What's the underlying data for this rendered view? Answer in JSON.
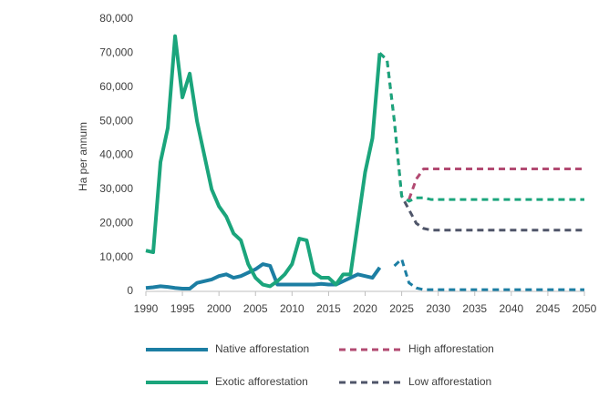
{
  "chart_data": {
    "type": "line",
    "y_label": "Ha per annum",
    "x": [
      1990,
      1991,
      1992,
      1993,
      1994,
      1995,
      1996,
      1997,
      1998,
      1999,
      2000,
      2001,
      2002,
      2003,
      2004,
      2005,
      2006,
      2007,
      2008,
      2009,
      2010,
      2011,
      2012,
      2013,
      2014,
      2015,
      2016,
      2017,
      2018,
      2019,
      2020,
      2021,
      2022,
      2023,
      2024,
      2025,
      2026,
      2027,
      2028,
      2029,
      2030,
      2031,
      2032,
      2033,
      2034,
      2035,
      2036,
      2037,
      2038,
      2039,
      2040,
      2041,
      2042,
      2043,
      2044,
      2045,
      2046,
      2047,
      2048,
      2049,
      2050
    ],
    "series": [
      {
        "name": "Native afforestation",
        "color": "#1c7ea3",
        "line_style": "solid",
        "values": [
          1000,
          1200,
          1500,
          1300,
          1000,
          800,
          800,
          2500,
          3000,
          3500,
          4500,
          5000,
          4000,
          4500,
          5500,
          6500,
          8000,
          7500,
          2000,
          2000,
          2000,
          2000,
          2000,
          2000,
          2200,
          2000,
          2000,
          3000,
          4000,
          5000,
          4500,
          4000,
          7000,
          null,
          null,
          null,
          null,
          null,
          null,
          null,
          null,
          null,
          null,
          null,
          null,
          null,
          null,
          null,
          null,
          null,
          null,
          null,
          null,
          null,
          null,
          null,
          null,
          null,
          null,
          null,
          null
        ]
      },
      {
        "name": "High afforestation",
        "color": "#b24a72",
        "line_style": "dashed",
        "values": [
          null,
          null,
          null,
          null,
          null,
          null,
          null,
          null,
          null,
          null,
          null,
          null,
          null,
          null,
          null,
          null,
          null,
          null,
          null,
          null,
          null,
          null,
          null,
          null,
          null,
          null,
          null,
          null,
          null,
          null,
          null,
          null,
          null,
          null,
          null,
          null,
          27000,
          33000,
          36000,
          36000,
          36000,
          36000,
          36000,
          36000,
          36000,
          36000,
          36000,
          36000,
          36000,
          36000,
          36000,
          36000,
          36000,
          36000,
          36000,
          36000,
          36000,
          36000,
          36000,
          36000,
          36000
        ]
      },
      {
        "name": "Exotic afforestation",
        "color": "#1ba57c",
        "line_style": "solid",
        "values": [
          12000,
          11500,
          38000,
          48000,
          75000,
          57000,
          64000,
          50000,
          40000,
          30000,
          25000,
          22000,
          17000,
          15000,
          8000,
          4000,
          2000,
          1500,
          3000,
          5000,
          8000,
          15500,
          15000,
          5500,
          4000,
          4000,
          2000,
          5000,
          5000,
          20000,
          35000,
          45000,
          70000,
          null,
          null,
          null,
          null,
          null,
          null,
          null,
          null,
          null,
          null,
          null,
          null,
          null,
          null,
          null,
          null,
          null,
          null,
          null,
          null,
          null,
          null,
          null,
          null,
          null,
          null,
          null,
          null
        ]
      },
      {
        "name": "Low afforestation",
        "color": "#4f5569",
        "line_style": "dashed",
        "values": [
          null,
          null,
          null,
          null,
          null,
          null,
          null,
          null,
          null,
          null,
          null,
          null,
          null,
          null,
          null,
          null,
          null,
          null,
          null,
          null,
          null,
          null,
          null,
          null,
          null,
          null,
          null,
          null,
          null,
          null,
          null,
          null,
          70000,
          68000,
          50000,
          28000,
          24000,
          20000,
          18500,
          18000,
          18000,
          18000,
          18000,
          18000,
          18000,
          18000,
          18000,
          18000,
          18000,
          18000,
          18000,
          18000,
          18000,
          18000,
          18000,
          18000,
          18000,
          18000,
          18000,
          18000,
          18000
        ]
      },
      {
        "color": "#1ba57c",
        "line_style": "dashed",
        "values": [
          null,
          null,
          null,
          null,
          null,
          null,
          null,
          null,
          null,
          null,
          null,
          null,
          null,
          null,
          null,
          null,
          null,
          null,
          null,
          null,
          null,
          null,
          null,
          null,
          null,
          null,
          null,
          null,
          null,
          null,
          null,
          null,
          70000,
          68000,
          50000,
          28000,
          26500,
          27500,
          27500,
          27000,
          27000,
          27000,
          27000,
          27000,
          27000,
          27000,
          27000,
          27000,
          27000,
          27000,
          27000,
          27000,
          27000,
          27000,
          27000,
          27000,
          27000,
          27000,
          27000,
          27000,
          27000
        ]
      },
      {
        "color": "#1c7ea3",
        "line_style": "dashed",
        "values": [
          null,
          null,
          null,
          null,
          null,
          null,
          null,
          null,
          null,
          null,
          null,
          null,
          null,
          null,
          null,
          null,
          null,
          null,
          null,
          null,
          null,
          null,
          null,
          null,
          null,
          null,
          null,
          null,
          null,
          null,
          null,
          null,
          null,
          null,
          7500,
          9500,
          2500,
          1000,
          500,
          500,
          500,
          500,
          500,
          500,
          500,
          500,
          500,
          500,
          500,
          500,
          500,
          500,
          500,
          500,
          500,
          500,
          500,
          500,
          500,
          500,
          500
        ]
      }
    ],
    "xlim": [
      1990,
      2050
    ],
    "xticks": [
      1990,
      1995,
      2000,
      2005,
      2010,
      2015,
      2020,
      2025,
      2030,
      2035,
      2040,
      2045,
      2050
    ],
    "ylim": [
      0,
      80000
    ],
    "yticks": [
      0,
      {
        "value": 10000,
        "label": "10,000"
      },
      {
        "value": 20000,
        "label": "20,000"
      },
      {
        "value": 30000,
        "label": "30,000"
      },
      {
        "value": 40000,
        "label": "40,000"
      },
      {
        "value": 50000,
        "label": "50,000"
      },
      {
        "value": 60000,
        "label": "60,000"
      },
      {
        "value": 70000,
        "label": "70,000"
      },
      {
        "value": 80000,
        "label": "80,000"
      }
    ],
    "grid": false
  }
}
